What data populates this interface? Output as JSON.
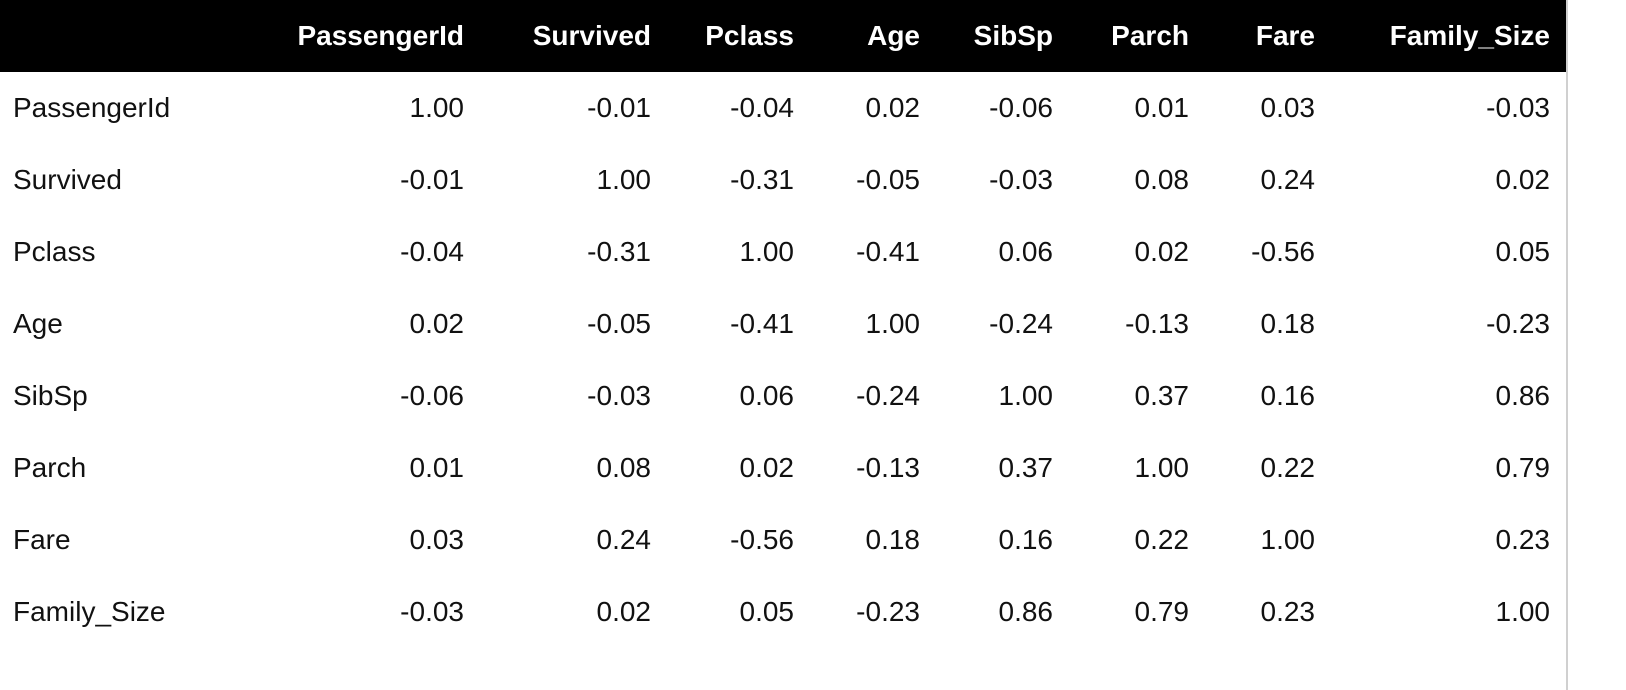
{
  "table": {
    "columns": [
      "PassengerId",
      "Survived",
      "Pclass",
      "Age",
      "SibSp",
      "Parch",
      "Fare",
      "Family_Size"
    ],
    "rows": [
      {
        "label": "PassengerId",
        "values": [
          "1.00",
          "-0.01",
          "-0.04",
          "0.02",
          "-0.06",
          "0.01",
          "0.03",
          "-0.03"
        ]
      },
      {
        "label": "Survived",
        "values": [
          "-0.01",
          "1.00",
          "-0.31",
          "-0.05",
          "-0.03",
          "0.08",
          "0.24",
          "0.02"
        ]
      },
      {
        "label": "Pclass",
        "values": [
          "-0.04",
          "-0.31",
          "1.00",
          "-0.41",
          "0.06",
          "0.02",
          "-0.56",
          "0.05"
        ]
      },
      {
        "label": "Age",
        "values": [
          "0.02",
          "-0.05",
          "-0.41",
          "1.00",
          "-0.24",
          "-0.13",
          "0.18",
          "-0.23"
        ]
      },
      {
        "label": "SibSp",
        "values": [
          "-0.06",
          "-0.03",
          "0.06",
          "-0.24",
          "1.00",
          "0.37",
          "0.16",
          "0.86"
        ]
      },
      {
        "label": "Parch",
        "values": [
          "0.01",
          "0.08",
          "0.02",
          "-0.13",
          "0.37",
          "1.00",
          "0.22",
          "0.79"
        ]
      },
      {
        "label": "Fare",
        "values": [
          "0.03",
          "0.24",
          "-0.56",
          "0.18",
          "0.16",
          "0.22",
          "1.00",
          "0.23"
        ]
      },
      {
        "label": "Family_Size",
        "values": [
          "-0.03",
          "0.02",
          "0.05",
          "-0.23",
          "0.86",
          "0.79",
          "0.23",
          "1.00"
        ]
      }
    ]
  },
  "colors": {
    "header_background": "#000000",
    "header_text": "#ffffff",
    "body_text": "#111111"
  }
}
